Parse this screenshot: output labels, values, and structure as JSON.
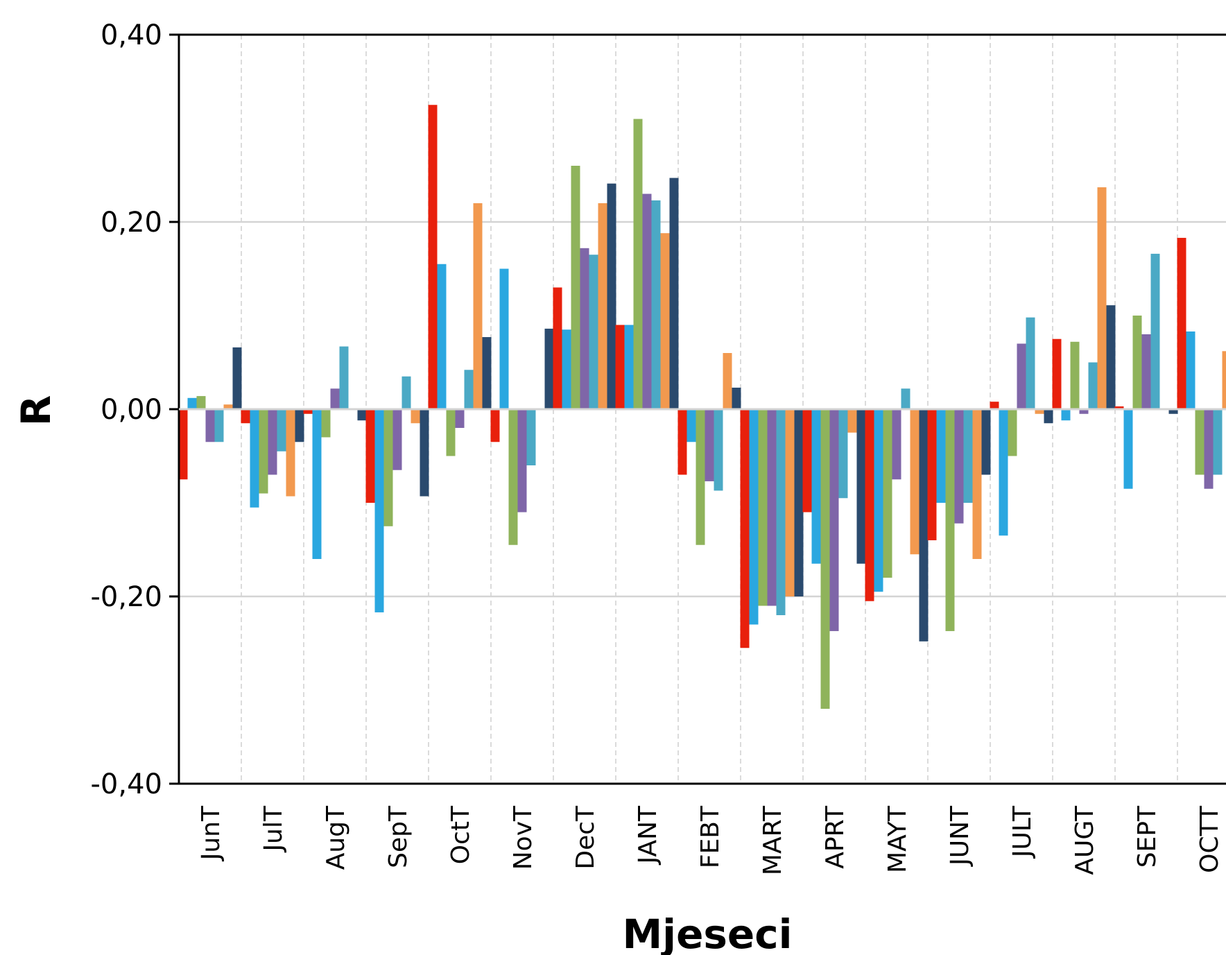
{
  "chart_data": {
    "type": "bar",
    "title": "",
    "xlabel": "Mjeseci",
    "ylabel": "R",
    "ylim": [
      -0.4,
      0.4
    ],
    "yticks": [
      "0,40",
      "0,20",
      "0,00",
      "-0,20",
      "-0,40"
    ],
    "ytick_values": [
      0.4,
      0.2,
      0.0,
      -0.2,
      -0.4
    ],
    "grid": {
      "horizontal": true,
      "vertical_dashed": true
    },
    "legend": "none",
    "categories": [
      "JunT",
      "JulT",
      "AugT",
      "SepT",
      "OctT",
      "NovT",
      "DecT",
      "JANT",
      "FEBT",
      "MART",
      "APRT",
      "MAYT",
      "JUNT",
      "JULT",
      "AUGT",
      "SEPT",
      "OCTT"
    ],
    "series_colors": [
      "#e8200c",
      "#2aa7e0",
      "#8fb35b",
      "#7f66a8",
      "#4ba9c5",
      "#f2994f",
      "#2a4a6e"
    ],
    "series": [
      {
        "values": [
          -0.075,
          -0.015,
          -0.005,
          -0.1,
          0.325,
          -0.035,
          0.13,
          0.09,
          -0.07,
          -0.255,
          -0.11,
          -0.205,
          -0.14,
          0.008,
          0.075,
          0.003,
          0.183
        ]
      },
      {
        "values": [
          0.012,
          -0.105,
          -0.16,
          -0.217,
          0.155,
          0.15,
          0.085,
          0.09,
          -0.035,
          -0.23,
          -0.165,
          -0.195,
          -0.1,
          -0.135,
          -0.012,
          -0.085,
          0.083
        ]
      },
      {
        "values": [
          0.014,
          -0.09,
          -0.03,
          -0.125,
          -0.05,
          -0.145,
          0.26,
          0.31,
          -0.145,
          -0.21,
          -0.32,
          -0.18,
          -0.237,
          -0.05,
          0.072,
          0.1,
          -0.07
        ]
      },
      {
        "values": [
          -0.035,
          -0.07,
          0.022,
          -0.065,
          -0.02,
          -0.11,
          0.172,
          0.23,
          -0.077,
          -0.21,
          -0.237,
          -0.075,
          -0.122,
          0.07,
          -0.005,
          0.08,
          -0.085
        ]
      },
      {
        "values": [
          -0.035,
          -0.045,
          0.067,
          0.035,
          0.042,
          -0.06,
          0.165,
          0.223,
          -0.087,
          -0.22,
          -0.095,
          0.022,
          -0.1,
          0.098,
          0.05,
          0.166,
          -0.07
        ]
      },
      {
        "values": [
          0.005,
          -0.093,
          0.0,
          -0.015,
          0.22,
          0.0,
          0.22,
          0.188,
          0.06,
          -0.2,
          -0.025,
          -0.155,
          -0.16,
          -0.005,
          0.237,
          0.0,
          0.062
        ]
      },
      {
        "values": [
          0.066,
          -0.035,
          -0.012,
          -0.093,
          0.077,
          0.086,
          0.241,
          0.247,
          0.023,
          -0.2,
          -0.165,
          -0.248,
          -0.07,
          -0.015,
          0.111,
          -0.005,
          0.0
        ]
      }
    ]
  }
}
